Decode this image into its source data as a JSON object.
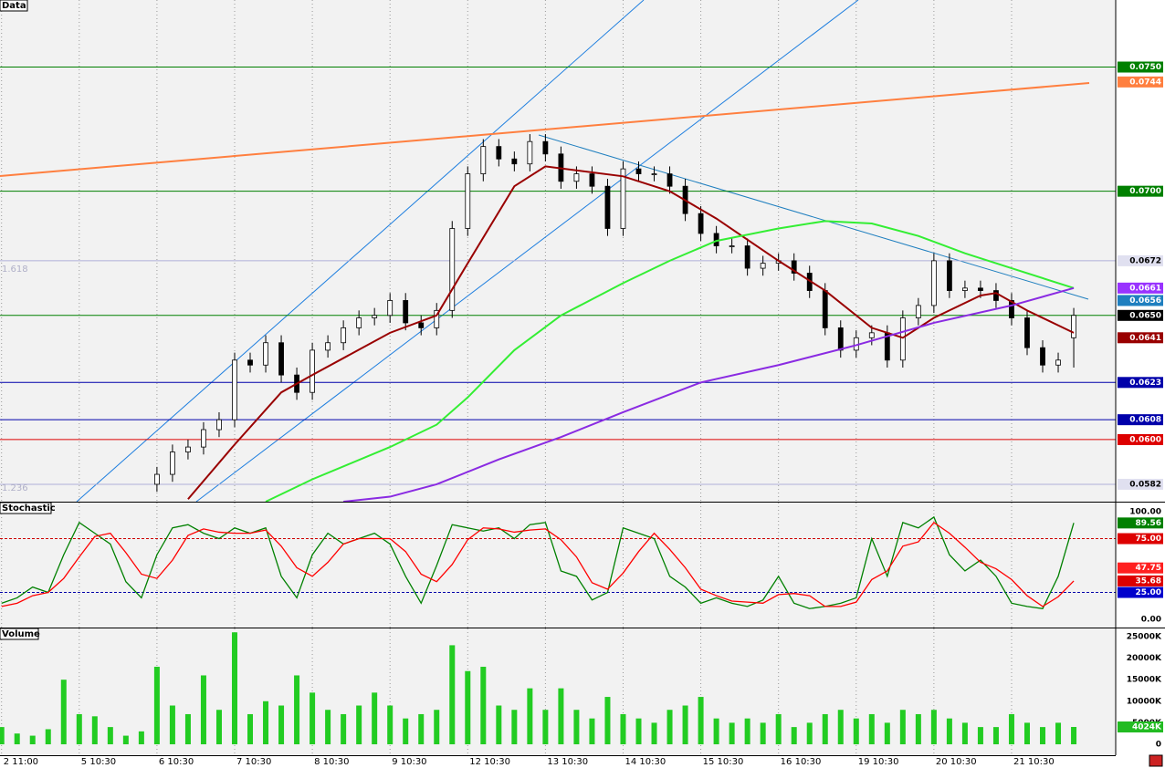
{
  "chart_data": [
    {
      "type": "candlestick",
      "title": "Data",
      "annotations": [
        "1.618",
        "1.236"
      ],
      "x": [
        10,
        11,
        12,
        13,
        14,
        15,
        16,
        17,
        18,
        19,
        20,
        21,
        22,
        23,
        24,
        25,
        26,
        27,
        28,
        29,
        30,
        31,
        32,
        33,
        34,
        35,
        36,
        37,
        38,
        39,
        40,
        41,
        42,
        43,
        44,
        45,
        46,
        47,
        48,
        49,
        50,
        51,
        52,
        53,
        54,
        55,
        56,
        57,
        58,
        59,
        60,
        61,
        62,
        63,
        64,
        65,
        66,
        67,
        68,
        69
      ],
      "open": [
        0.0582,
        0.0586,
        0.0595,
        0.0597,
        0.0604,
        0.0608,
        0.0632,
        0.063,
        0.0639,
        0.0626,
        0.0619,
        0.0636,
        0.0639,
        0.0645,
        0.0649,
        0.065,
        0.0656,
        0.0647,
        0.0645,
        0.0652,
        0.0685,
        0.0707,
        0.0718,
        0.0713,
        0.0711,
        0.072,
        0.0715,
        0.0704,
        0.0707,
        0.0702,
        0.0685,
        0.0709,
        0.0707,
        0.0707,
        0.0702,
        0.0691,
        0.0683,
        0.0678,
        0.0678,
        0.0669,
        0.0671,
        0.0672,
        0.0667,
        0.066,
        0.0645,
        0.0636,
        0.0641,
        0.0643,
        0.0632,
        0.0649,
        0.0654,
        0.0672,
        0.066,
        0.0661,
        0.066,
        0.0656,
        0.0649,
        0.0637,
        0.063,
        0.0641
      ],
      "high": [
        0.0589,
        0.0598,
        0.06,
        0.0607,
        0.0611,
        0.0635,
        0.0635,
        0.0642,
        0.0642,
        0.0629,
        0.0639,
        0.0642,
        0.0648,
        0.0652,
        0.0653,
        0.0659,
        0.0659,
        0.065,
        0.0655,
        0.0688,
        0.071,
        0.0721,
        0.0721,
        0.0716,
        0.0723,
        0.0723,
        0.0718,
        0.071,
        0.071,
        0.0705,
        0.0712,
        0.0712,
        0.071,
        0.071,
        0.0705,
        0.0694,
        0.0686,
        0.0681,
        0.0681,
        0.0674,
        0.0675,
        0.0675,
        0.067,
        0.0663,
        0.0648,
        0.0644,
        0.0646,
        0.0646,
        0.0652,
        0.0657,
        0.0675,
        0.0675,
        0.0664,
        0.0664,
        0.0663,
        0.0659,
        0.0652,
        0.064,
        0.0635,
        0.0653
      ],
      "low": [
        0.0579,
        0.0583,
        0.0592,
        0.0594,
        0.0601,
        0.0605,
        0.0627,
        0.0627,
        0.0623,
        0.0616,
        0.0616,
        0.0633,
        0.0636,
        0.0642,
        0.0646,
        0.0647,
        0.0644,
        0.0642,
        0.0642,
        0.0649,
        0.0682,
        0.0704,
        0.071,
        0.0708,
        0.0708,
        0.0712,
        0.0701,
        0.0701,
        0.0699,
        0.0682,
        0.0682,
        0.0704,
        0.0704,
        0.0699,
        0.0688,
        0.068,
        0.0675,
        0.0675,
        0.0666,
        0.0666,
        0.0668,
        0.0664,
        0.0657,
        0.0642,
        0.0633,
        0.0633,
        0.0638,
        0.0629,
        0.0629,
        0.0646,
        0.0651,
        0.0657,
        0.0657,
        0.0657,
        0.0653,
        0.0646,
        0.0634,
        0.0627,
        0.0627,
        0.0629
      ],
      "close": [
        0.0586,
        0.0595,
        0.0597,
        0.0604,
        0.0608,
        0.0632,
        0.063,
        0.0639,
        0.0626,
        0.0619,
        0.0636,
        0.0639,
        0.0645,
        0.0649,
        0.065,
        0.0656,
        0.0647,
        0.0645,
        0.0652,
        0.0685,
        0.0707,
        0.0718,
        0.0713,
        0.0711,
        0.072,
        0.0715,
        0.0704,
        0.0707,
        0.0702,
        0.0685,
        0.0709,
        0.0707,
        0.0707,
        0.0702,
        0.0691,
        0.0683,
        0.0678,
        0.0678,
        0.0669,
        0.0671,
        0.0672,
        0.0667,
        0.066,
        0.0645,
        0.0636,
        0.0641,
        0.0643,
        0.0632,
        0.0649,
        0.0654,
        0.0672,
        0.066,
        0.0661,
        0.066,
        0.0656,
        0.0649,
        0.0637,
        0.063,
        0.0632,
        0.065
      ],
      "up_color": "#ffffff",
      "down_color": "#000000",
      "lines": [
        {
          "color": "#990000",
          "x": [
            12,
            15,
            18,
            20,
            25,
            28,
            30,
            33,
            35,
            40,
            43,
            46,
            50,
            53,
            56,
            58,
            60,
            63,
            64,
            66,
            69
          ],
          "values": [
            0.0576,
            0.0598,
            0.0619,
            0.0626,
            0.0643,
            0.065,
            0.0671,
            0.0702,
            0.071,
            0.0706,
            0.07,
            0.0689,
            0.0672,
            0.066,
            0.0645,
            0.0641,
            0.0649,
            0.0658,
            0.0659,
            0.0652,
            0.0643
          ]
        },
        {
          "color": "#33ee33",
          "x": [
            17,
            20,
            25,
            28,
            30,
            33,
            36,
            40,
            43,
            46,
            50,
            53,
            56,
            59,
            62,
            65,
            69
          ],
          "values": [
            0.0575,
            0.0584,
            0.0597,
            0.0606,
            0.0617,
            0.0636,
            0.065,
            0.0663,
            0.0672,
            0.068,
            0.0685,
            0.0688,
            0.0687,
            0.0682,
            0.0675,
            0.0669,
            0.0661
          ]
        },
        {
          "color": "#8a2be2",
          "x": [
            22,
            25,
            28,
            32,
            36,
            40,
            45,
            50,
            55,
            60,
            65,
            69
          ],
          "values": [
            0.0575,
            0.0577,
            0.0582,
            0.0592,
            0.0601,
            0.0611,
            0.0623,
            0.063,
            0.0638,
            0.0647,
            0.0654,
            0.0661
          ]
        }
      ],
      "xlim": [
        -0.1,
        71.7
      ],
      "ylim": [
        0.0575,
        0.0777
      ],
      "xticks": [
        {
          "value": 0,
          "label": "2 11:00"
        },
        {
          "value": 5,
          "label": "5 10:30"
        },
        {
          "value": 10,
          "label": "6 10:30"
        },
        {
          "value": 15,
          "label": "7 10:30"
        },
        {
          "value": 20,
          "label": "8 10:30"
        },
        {
          "value": 25,
          "label": "9 10:30"
        },
        {
          "value": 30,
          "label": "12 10:30"
        },
        {
          "value": 35,
          "label": "13 10:30"
        },
        {
          "value": 40,
          "label": "14 10:30"
        },
        {
          "value": 45,
          "label": "15 10:30"
        },
        {
          "value": 50,
          "label": "16 10:30"
        },
        {
          "value": 55,
          "label": "19 10:30"
        },
        {
          "value": 60,
          "label": "20 10:30"
        },
        {
          "value": 65,
          "label": "21 10:30"
        }
      ],
      "yticks": [
        {
          "value": 0.075,
          "label": "0.0750"
        },
        {
          "value": 0.0744,
          "label": "0.0744"
        },
        {
          "value": 0.07,
          "label": "0.0700"
        },
        {
          "value": 0.0672,
          "label": "0.0672"
        },
        {
          "value": 0.0661,
          "label": "0.0661"
        },
        {
          "value": 0.0656,
          "label": "0.0656"
        },
        {
          "value": 0.065,
          "label": "0.0650"
        },
        {
          "value": 0.0641,
          "label": "0.0641"
        },
        {
          "value": 0.0623,
          "label": "0.0623"
        },
        {
          "value": 0.0608,
          "label": "0.0608"
        },
        {
          "value": 0.06,
          "label": "0.0600"
        },
        {
          "value": 0.0582,
          "label": "0.0582"
        }
      ],
      "ytick_colors": [
        "#008000",
        "#ff7f3f",
        "#008000",
        "#e0e0f0",
        "#9933ff",
        "#1f7fbf",
        "#000000",
        "#990000",
        "#0000aa",
        "#0000aa",
        "#dd0000",
        "#e0e0f0"
      ],
      "ytick_line_colors": [
        "#008000",
        null,
        "#008000",
        "#b0b0d8",
        null,
        null,
        "#008000",
        null,
        "#0000aa",
        "#0000aa",
        "#dd0000",
        "#b0b0d8"
      ],
      "level_line_style": "solid"
    },
    {
      "type": "line",
      "title": "Stochastic",
      "x": [
        0,
        1,
        2,
        3,
        4,
        5,
        6,
        7,
        8,
        9,
        10,
        11,
        12,
        13,
        14,
        15,
        16,
        17,
        18,
        19,
        20,
        21,
        22,
        23,
        24,
        25,
        26,
        27,
        28,
        29,
        30,
        31,
        32,
        33,
        34,
        35,
        36,
        37,
        38,
        39,
        40,
        41,
        42,
        43,
        44,
        45,
        46,
        47,
        48,
        49,
        50,
        51,
        52,
        53,
        54,
        55,
        56,
        57,
        58,
        59,
        60,
        61,
        62,
        63,
        64,
        65,
        66,
        67,
        68,
        69
      ],
      "series": [
        {
          "color": "#008000",
          "values": [
            15,
            20,
            30,
            25,
            60,
            90,
            80,
            70,
            35,
            20,
            60,
            85,
            88,
            80,
            75,
            85,
            80,
            85,
            40,
            20,
            60,
            80,
            70,
            75,
            80,
            70,
            40,
            15,
            50,
            88,
            85,
            82,
            85,
            75,
            88,
            90,
            45,
            40,
            18,
            25,
            85,
            80,
            75,
            40,
            30,
            15,
            20,
            15,
            12,
            18,
            40,
            15,
            10,
            12,
            15,
            20,
            75,
            40,
            90,
            85,
            95,
            60,
            45,
            55,
            40,
            15,
            12,
            10,
            40,
            89.56
          ]
        },
        {
          "color": "#ff0000",
          "values": [
            12,
            15,
            22,
            25,
            38,
            58,
            77,
            80,
            62,
            42,
            38,
            55,
            78,
            84,
            81,
            80,
            80,
            83,
            68,
            48,
            40,
            53,
            70,
            75,
            75,
            75,
            63,
            42,
            35,
            51,
            74,
            85,
            84,
            81,
            83,
            84,
            74,
            58,
            34,
            28,
            43,
            63,
            80,
            65,
            48,
            28,
            22,
            17,
            16,
            15,
            23,
            24,
            22,
            12,
            12,
            16,
            37,
            45,
            68,
            72,
            90,
            80,
            67,
            53,
            47,
            37,
            22,
            12,
            21,
            35.68
          ]
        }
      ],
      "xlim": [
        -0.1,
        71.7
      ],
      "ylim": [
        -7.6,
        108.5
      ],
      "yticks": [
        {
          "value": 100,
          "label": "100.00"
        },
        89.56,
        {
          "value": 75,
          "label": "75.00"
        },
        47.75,
        35.68,
        {
          "value": 25,
          "label": "25.00"
        },
        {
          "value": 0,
          "label": "0.00"
        }
      ],
      "ytick_colors": [
        null,
        "#008000",
        "#dd0000",
        "#ff2020",
        "#dd0000",
        "#0000cc",
        null
      ],
      "ytick_line_colors": [
        null,
        null,
        "#cc0000",
        null,
        null,
        "#0000aa",
        null
      ],
      "level_line_style": "dashed"
    },
    {
      "type": "bar",
      "title": "Volume",
      "color": "#22cc22",
      "x": [
        0,
        1,
        2,
        3,
        4,
        5,
        6,
        7,
        8,
        9,
        10,
        11,
        12,
        13,
        14,
        15,
        16,
        17,
        18,
        19,
        20,
        21,
        22,
        23,
        24,
        25,
        26,
        27,
        28,
        29,
        30,
        31,
        32,
        33,
        34,
        35,
        36,
        37,
        38,
        39,
        40,
        41,
        42,
        43,
        44,
        45,
        46,
        47,
        48,
        49,
        50,
        51,
        52,
        53,
        54,
        55,
        56,
        57,
        58,
        59,
        60,
        61,
        62,
        63,
        64,
        65,
        66,
        67,
        68,
        69
      ],
      "values": [
        4000,
        2500,
        2000,
        3500,
        15000,
        7000,
        6500,
        4000,
        2000,
        3000,
        18000,
        9000,
        7000,
        16000,
        8000,
        26000,
        7000,
        10000,
        9000,
        16000,
        12000,
        8000,
        7000,
        9000,
        12000,
        9000,
        6000,
        7000,
        8000,
        23000,
        17000,
        18000,
        9000,
        8000,
        13000,
        8000,
        13000,
        8000,
        6000,
        11000,
        7000,
        6000,
        5000,
        8000,
        9000,
        11000,
        6000,
        5000,
        6000,
        5000,
        7000,
        4000,
        5000,
        7000,
        8000,
        6000,
        7000,
        5000,
        8000,
        7000,
        8000,
        6000,
        5000,
        4000,
        4000,
        7000,
        5000,
        4000,
        5000,
        4024
      ],
      "xlim": [
        -0.1,
        71.7
      ],
      "ylim": [
        -2540,
        26900
      ],
      "yticks": [
        {
          "value": 25000,
          "label": "25000K"
        },
        {
          "value": 20000,
          "label": "20000K"
        },
        {
          "value": 15000,
          "label": "15000K"
        },
        {
          "value": 10000,
          "label": "10000K"
        },
        {
          "value": 5000,
          "label": "5000K"
        },
        {
          "value": 4024,
          "label": "4024K"
        },
        0
      ],
      "ytick_colors": [
        null,
        null,
        null,
        null,
        null,
        "#22bb22",
        null
      ],
      "ytick_line_colors": [
        null,
        null,
        null,
        null,
        null,
        null,
        null
      ],
      "level_line_style": "solid"
    }
  ]
}
